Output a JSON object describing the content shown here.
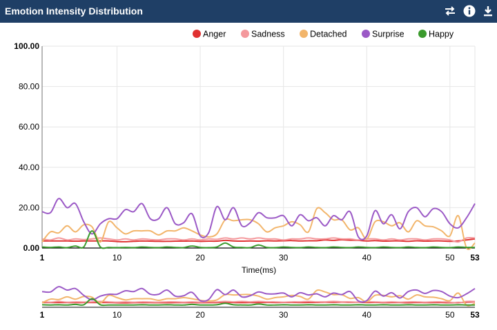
{
  "header": {
    "title": "Emotion Intensity Distribution",
    "icons": [
      "swap-icon",
      "info-icon",
      "download-icon"
    ],
    "background": "#1f3f66"
  },
  "chart_data": {
    "type": "line",
    "title": "Emotion Intensity Distribution",
    "xlabel": "Time(ms)",
    "ylabel": "",
    "xlim": [
      1,
      53
    ],
    "ylim": [
      0,
      100
    ],
    "x_ticks": [
      1,
      10,
      20,
      30,
      40,
      50,
      53
    ],
    "y_ticks": [
      "0.00",
      "20.00",
      "40.00",
      "60.00",
      "80.00",
      "100.00"
    ],
    "grid": true,
    "legend_position": "top-right",
    "x": [
      1,
      2,
      3,
      4,
      5,
      6,
      7,
      8,
      9,
      10,
      11,
      12,
      13,
      14,
      15,
      16,
      17,
      18,
      19,
      20,
      21,
      22,
      23,
      24,
      25,
      26,
      27,
      28,
      29,
      30,
      31,
      32,
      33,
      34,
      35,
      36,
      37,
      38,
      39,
      40,
      41,
      42,
      43,
      44,
      45,
      46,
      47,
      48,
      49,
      50,
      51,
      52,
      53
    ],
    "series": [
      {
        "name": "Anger",
        "color": "#e03131",
        "values": [
          3.5,
          3.5,
          3.5,
          3.5,
          3.4,
          3.5,
          3.5,
          3.5,
          3.5,
          3.2,
          3.1,
          3.3,
          3.5,
          3.4,
          3.3,
          3.3,
          3.4,
          3.4,
          3.5,
          3.3,
          3.4,
          3.4,
          3.8,
          3.5,
          3.4,
          3.5,
          3.4,
          3.6,
          3.5,
          3.6,
          3.7,
          3.5,
          3.6,
          3.6,
          4.0,
          3.8,
          4.1,
          3.9,
          3.8,
          3.5,
          3.7,
          3.4,
          3.5,
          3.5,
          3.3,
          3.6,
          3.4,
          3.5,
          3.5,
          3.3,
          3.5,
          4.0,
          4.5
        ]
      },
      {
        "name": "Sadness",
        "color": "#f4989c",
        "values": [
          4.5,
          4.0,
          5.0,
          4.0,
          4.5,
          4.2,
          4.5,
          5.0,
          4.5,
          4.0,
          4.5,
          4.0,
          4.5,
          4.2,
          4.0,
          4.5,
          4.5,
          4.0,
          4.5,
          4.0,
          4.5,
          4.3,
          5.0,
          4.5,
          5.0,
          4.5,
          5.0,
          4.5,
          4.5,
          4.0,
          4.5,
          4.5,
          5.0,
          4.5,
          4.5,
          5.0,
          4.5,
          4.5,
          4.0,
          4.5,
          4.5,
          4.0,
          4.5,
          4.0,
          4.5,
          4.5,
          4.0,
          4.5,
          4.5,
          4.0,
          3.0,
          5.0,
          5.0
        ]
      },
      {
        "name": "Detached",
        "color": "#f2b56b",
        "values": [
          3.0,
          8.0,
          7.5,
          11.0,
          8.0,
          11.5,
          10.5,
          3.0,
          13.0,
          10.0,
          7.0,
          8.5,
          8.5,
          8.5,
          6.5,
          8.5,
          8.5,
          10.0,
          8.5,
          6.5,
          5.5,
          7.0,
          14.0,
          13.5,
          14.0,
          14.0,
          12.0,
          8.0,
          10.0,
          11.0,
          13.0,
          11.5,
          8.0,
          19.5,
          17.5,
          14.0,
          14.0,
          9.0,
          10.0,
          4.5,
          13.0,
          13.0,
          11.0,
          12.5,
          8.0,
          13.5,
          11.0,
          10.5,
          8.5,
          6.0,
          16.0,
          0.0,
          2.5
        ]
      },
      {
        "name": "Surprise",
        "color": "#9b59c6",
        "values": [
          18.0,
          17.5,
          24.5,
          20.0,
          22.0,
          13.0,
          7.0,
          12.0,
          14.5,
          14.5,
          19.0,
          18.0,
          22.0,
          14.5,
          14.5,
          20.0,
          12.0,
          12.5,
          17.0,
          6.0,
          7.5,
          20.5,
          14.0,
          20.0,
          11.0,
          12.5,
          17.5,
          15.0,
          15.0,
          16.0,
          11.0,
          16.5,
          13.5,
          15.0,
          11.0,
          16.0,
          14.0,
          18.0,
          5.5,
          6.0,
          18.5,
          12.0,
          16.5,
          9.5,
          18.0,
          20.0,
          15.5,
          19.5,
          18.0,
          12.0,
          10.0,
          15.0,
          22.0
        ]
      },
      {
        "name": "Happy",
        "color": "#3a9a2c",
        "values": [
          0.5,
          0.3,
          0.5,
          0.2,
          1.0,
          0.5,
          8.5,
          0.5,
          0.3,
          0.2,
          0.3,
          0.2,
          0.5,
          0.3,
          0.2,
          0.5,
          0.3,
          0.2,
          1.0,
          0.3,
          0.2,
          0.5,
          2.5,
          0.5,
          0.3,
          0.2,
          1.5,
          0.3,
          0.2,
          0.5,
          0.3,
          0.2,
          0.5,
          0.3,
          0.2,
          0.5,
          0.3,
          0.2,
          0.5,
          0.3,
          0.2,
          0.5,
          0.3,
          0.2,
          0.5,
          0.3,
          0.2,
          0.5,
          0.3,
          0.2,
          0.5,
          0.3,
          0.3
        ]
      }
    ]
  }
}
